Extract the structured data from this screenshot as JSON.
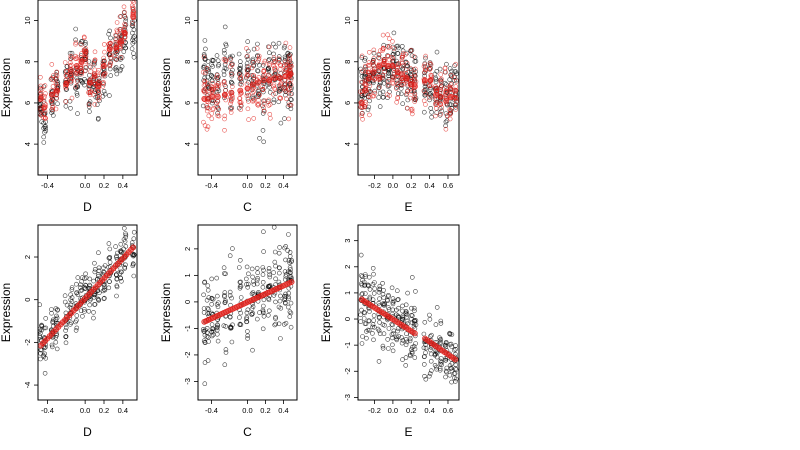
{
  "chart_data": [
    {
      "type": "scatter",
      "xlabel": "D",
      "ylabel": "Expression",
      "xlim": [
        -0.5,
        0.55
      ],
      "ylim": [
        2.5,
        11.0
      ],
      "xticks": [
        "-0.4",
        "0.0",
        "0.2",
        "0.4"
      ],
      "xtick_values": [
        -0.4,
        0.0,
        0.2,
        0.4
      ],
      "yticks": [
        "4",
        "6",
        "8",
        "10"
      ],
      "ytick_values": [
        4,
        6,
        8,
        10
      ],
      "x_levels": [
        -0.47,
        -0.43,
        -0.35,
        -0.3,
        -0.2,
        -0.15,
        -0.09,
        -0.04,
        0.0,
        0.05,
        0.1,
        0.14,
        0.2,
        0.26,
        0.33,
        0.38,
        0.42,
        0.51
      ],
      "series": [
        {
          "color": "#000000",
          "marker": "open-circle",
          "centers": [
            5.8,
            5.6,
            6.2,
            6.6,
            6.9,
            7.4,
            7.6,
            7.9,
            8.0,
            6.7,
            7.0,
            6.5,
            7.6,
            8.4,
            8.4,
            8.8,
            9.3,
            9.6
          ],
          "spread": 1.1
        },
        {
          "color": "#e0201b",
          "marker": "open-circle",
          "centers": [
            6.2,
            5.8,
            6.4,
            6.6,
            6.9,
            7.6,
            7.8,
            8.0,
            8.5,
            7.0,
            7.3,
            6.8,
            7.8,
            8.6,
            8.7,
            9.0,
            9.4,
            10.2
          ],
          "spread": 0.9,
          "fit": true
        }
      ]
    },
    {
      "type": "scatter",
      "xlabel": "C",
      "ylabel": "Expression",
      "xlim": [
        -0.55,
        0.55
      ],
      "ylim": [
        2.5,
        11.0
      ],
      "xticks": [
        "-0.4",
        "0.0",
        "0.2",
        "0.4"
      ],
      "xtick_values": [
        -0.4,
        0.0,
        0.2,
        0.4
      ],
      "yticks": [
        "4",
        "6",
        "8",
        "10"
      ],
      "ytick_values": [
        4,
        6,
        8,
        10
      ],
      "x_levels": [
        -0.48,
        -0.44,
        -0.39,
        -0.33,
        -0.25,
        -0.18,
        -0.08,
        0.0,
        0.06,
        0.12,
        0.18,
        0.24,
        0.3,
        0.36,
        0.42,
        0.46,
        0.48
      ],
      "series": [
        {
          "color": "#000000",
          "marker": "open-circle",
          "centers": [
            7.6,
            7.2,
            7.0,
            7.4,
            7.6,
            7.2,
            7.6,
            7.3,
            7.5,
            7.4,
            7.0,
            7.4,
            7.6,
            7.3,
            7.2,
            7.5,
            7.5
          ],
          "spread": 1.6
        },
        {
          "color": "#e0201b",
          "marker": "open-circle",
          "centers": [
            6.2,
            6.2,
            6.3,
            6.3,
            6.4,
            6.5,
            6.6,
            6.7,
            6.9,
            7.0,
            7.1,
            7.1,
            7.2,
            7.2,
            7.3,
            7.3,
            7.4
          ],
          "spread": 1.5,
          "fit": true
        }
      ]
    },
    {
      "type": "scatter",
      "xlabel": "E",
      "ylabel": "Expression",
      "xlim": [
        -0.38,
        0.72
      ],
      "ylim": [
        2.5,
        11.0
      ],
      "xticks": [
        "-0.2",
        "0.0",
        "0.2",
        "0.4",
        "0.6"
      ],
      "xtick_values": [
        -0.2,
        0.0,
        0.2,
        0.4,
        0.6
      ],
      "yticks": [
        "4",
        "6",
        "8",
        "10"
      ],
      "ytick_values": [
        4,
        6,
        8,
        10
      ],
      "x_levels": [
        -0.34,
        -0.3,
        -0.26,
        -0.21,
        -0.15,
        -0.1,
        -0.05,
        0.0,
        0.05,
        0.1,
        0.15,
        0.2,
        0.24,
        0.35,
        0.41,
        0.47,
        0.52,
        0.58,
        0.63,
        0.68
      ],
      "series": [
        {
          "color": "#000000",
          "marker": "open-circle",
          "centers": [
            6.7,
            7.3,
            7.0,
            7.1,
            7.5,
            7.3,
            7.4,
            8.0,
            7.4,
            7.6,
            7.2,
            7.5,
            7.0,
            6.9,
            6.8,
            6.6,
            6.4,
            6.5,
            6.6,
            6.8
          ],
          "spread": 1.3
        },
        {
          "color": "#e0201b",
          "marker": "open-circle",
          "centers": [
            6.0,
            6.6,
            7.2,
            7.5,
            7.8,
            7.9,
            7.8,
            7.8,
            7.5,
            7.4,
            7.2,
            6.9,
            6.8,
            7.1,
            7.1,
            6.4,
            6.3,
            6.1,
            6.3,
            6.6
          ],
          "spread": 1.2,
          "fit": true
        }
      ]
    },
    {
      "type": "scatter",
      "xlabel": "D",
      "ylabel": "Expression",
      "xlim": [
        -0.5,
        0.55
      ],
      "ylim": [
        -4.7,
        3.5
      ],
      "xticks": [
        "-0.4",
        "0.0",
        "0.2",
        "0.4"
      ],
      "xtick_values": [
        -0.4,
        0.0,
        0.2,
        0.4
      ],
      "yticks": [
        "-4",
        "-2",
        "0",
        "2"
      ],
      "ytick_values": [
        -4,
        -2,
        0,
        2
      ],
      "x_levels": [
        -0.47,
        -0.43,
        -0.35,
        -0.3,
        -0.2,
        -0.15,
        -0.09,
        -0.04,
        0.0,
        0.05,
        0.1,
        0.14,
        0.2,
        0.26,
        0.33,
        0.38,
        0.42,
        0.51
      ],
      "series": [
        {
          "color": "#000000",
          "marker": "open-circle",
          "centers": [
            -1.8,
            -1.9,
            -1.4,
            -1.2,
            -0.8,
            -0.4,
            -0.3,
            0.0,
            0.2,
            0.3,
            0.6,
            0.9,
            1.0,
            1.3,
            1.6,
            1.9,
            2.1,
            2.2
          ],
          "spread": 1.1
        },
        {
          "color": "#e0201b",
          "marker": "filled-circle",
          "fit": true,
          "line": [
            [
              -0.47,
              -2.15
            ],
            [
              0.51,
              2.45
            ]
          ]
        }
      ]
    },
    {
      "type": "scatter",
      "xlabel": "C",
      "ylabel": "Expression",
      "xlim": [
        -0.55,
        0.55
      ],
      "ylim": [
        -3.7,
        2.9
      ],
      "xticks": [
        "-0.4",
        "0.0",
        "0.2",
        "0.4"
      ],
      "xtick_values": [
        -0.4,
        0.0,
        0.2,
        0.4
      ],
      "yticks": [
        "-3",
        "-2",
        "-1",
        "0",
        "1",
        "2"
      ],
      "ytick_values": [
        -3,
        -2,
        -1,
        0,
        1,
        2
      ],
      "x_levels": [
        -0.48,
        -0.44,
        -0.39,
        -0.33,
        -0.25,
        -0.18,
        -0.08,
        0.0,
        0.06,
        0.12,
        0.18,
        0.24,
        0.3,
        0.36,
        0.42,
        0.46,
        0.48
      ],
      "series": [
        {
          "color": "#000000",
          "marker": "open-circle",
          "centers": [
            -0.7,
            -0.6,
            -0.5,
            -0.4,
            -0.3,
            -0.2,
            -0.1,
            0.0,
            0.1,
            0.2,
            0.3,
            0.4,
            0.4,
            0.5,
            0.6,
            0.6,
            0.7
          ],
          "spread": 1.3
        },
        {
          "color": "#e0201b",
          "marker": "filled-circle",
          "fit": true,
          "line": [
            [
              -0.48,
              -0.75
            ],
            [
              0.49,
              0.75
            ]
          ]
        }
      ]
    },
    {
      "type": "scatter",
      "xlabel": "E",
      "ylabel": "Expression",
      "xlim": [
        -0.38,
        0.72
      ],
      "ylim": [
        -3.1,
        3.6
      ],
      "xticks": [
        "-0.2",
        "0.0",
        "0.2",
        "0.4",
        "0.6"
      ],
      "xtick_values": [
        -0.2,
        0.0,
        0.2,
        0.4,
        0.6
      ],
      "yticks": [
        "-3",
        "-2",
        "-1",
        "0",
        "1",
        "2",
        "3"
      ],
      "ytick_values": [
        -3,
        -2,
        -1,
        0,
        1,
        2,
        3
      ],
      "x_levels": [
        -0.34,
        -0.3,
        -0.26,
        -0.21,
        -0.15,
        -0.1,
        -0.05,
        0.0,
        0.05,
        0.1,
        0.15,
        0.2,
        0.24,
        0.35,
        0.41,
        0.47,
        0.52,
        0.58,
        0.63,
        0.68
      ],
      "series": [
        {
          "color": "#000000",
          "marker": "open-circle",
          "centers": [
            0.9,
            0.7,
            0.6,
            0.5,
            0.3,
            0.3,
            0.1,
            0.1,
            -0.1,
            -0.2,
            -0.3,
            -0.5,
            -0.5,
            -0.9,
            -1.0,
            -1.1,
            -1.3,
            -1.4,
            -1.5,
            -1.6
          ],
          "spread": 1.2
        },
        {
          "color": "#e0201b",
          "marker": "filled-circle",
          "fit": true,
          "line": [
            [
              -0.34,
              0.75
            ],
            [
              0.24,
              -0.55
            ],
            [
              0.35,
              -0.75
            ],
            [
              0.68,
              -1.55
            ]
          ]
        }
      ]
    }
  ]
}
